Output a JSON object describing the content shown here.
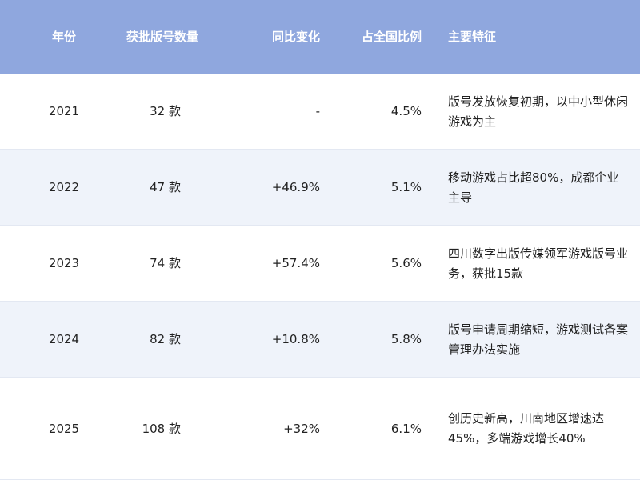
{
  "table": {
    "header": [
      "年份",
      "获批版号数量",
      "同比变化",
      "占全国比例",
      "主要特征"
    ],
    "rows": [
      [
        "2021",
        "32 款",
        "-",
        "4.5%",
        "版号发放恢复初期，以中小型休闲游戏为主"
      ],
      [
        "2022",
        "47 款",
        "+46.9%",
        "5.1%",
        "移动游戏占比超80%，成都企业主导"
      ],
      [
        "2023",
        "74 款",
        "+57.4%",
        "5.6%",
        "四川数字出版传媒领军游戏版号业务，获批15款"
      ],
      [
        "2024",
        "82 款",
        "+10.8%",
        "5.8%",
        "版号申请周期缩短，游戏测试备案管理办法实施"
      ],
      [
        "2025",
        "108 款",
        "+32%",
        "6.1%",
        "创历史新高，川南地区增速达45%，多端游戏增长40%"
      ]
    ]
  }
}
